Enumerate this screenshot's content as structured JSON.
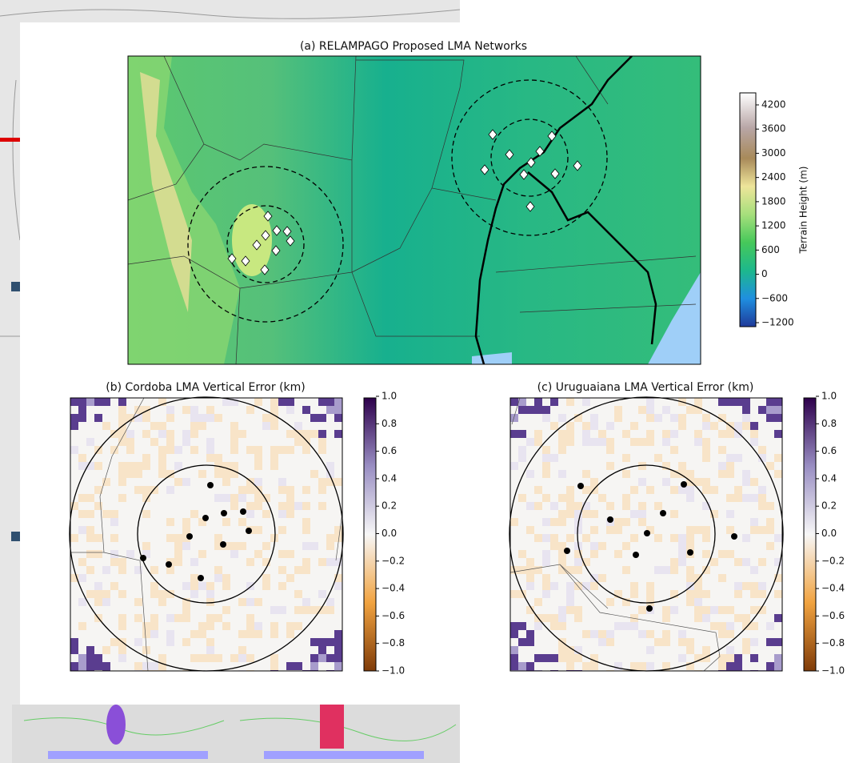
{
  "panel_a": {
    "title": "(a) RELAMPAGO Proposed LMA Networks",
    "colorbar_label": "Terrain Height (m)",
    "colorbar_ticks": [
      "4200",
      "3600",
      "3000",
      "2400",
      "1800",
      "1200",
      "600",
      "0",
      "−600",
      "−1200"
    ]
  },
  "panel_b": {
    "title": "(b) Cordoba LMA Vertical Error (km)",
    "colorbar_ticks": [
      "1.0",
      "0.8",
      "0.6",
      "0.4",
      "0.2",
      "0.0",
      "−0.2",
      "−0.4",
      "−0.6",
      "−0.8",
      "−1.0"
    ]
  },
  "panel_c": {
    "title": "(c) Uruguaiana LMA Vertical Error (km)",
    "colorbar_ticks": [
      "1.0",
      "0.8",
      "0.6",
      "0.4",
      "0.2",
      "0.0",
      "−0.2",
      "−0.4",
      "−0.6",
      "−0.8",
      "−1.0"
    ]
  }
}
